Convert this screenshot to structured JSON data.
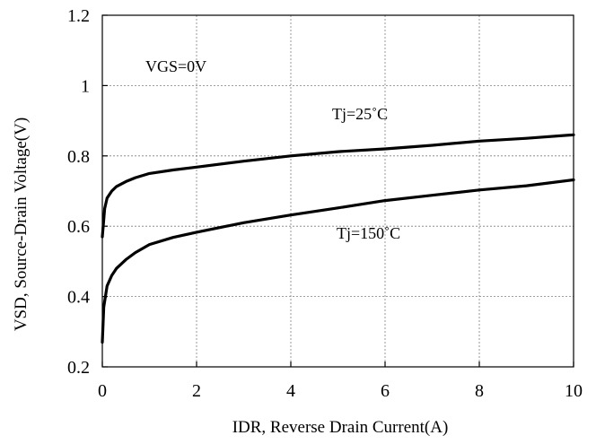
{
  "chart_data": {
    "type": "line",
    "xlabel": "IDR, Reverse Drain Current(A)",
    "ylabel": "VSD, Source-Drain Voltage(V)",
    "xlim": [
      0,
      10
    ],
    "ylim": [
      0.2,
      1.2
    ],
    "x_ticks": [
      "0",
      "2",
      "4",
      "6",
      "8",
      "10"
    ],
    "y_ticks": [
      "0.2",
      "0.4",
      "0.6",
      "0.8",
      "1",
      "1.2"
    ],
    "grid": true,
    "annotations": {
      "condition": "VGS=0V",
      "series_25": "Tj=25˚C",
      "series_150": "Tj=150˚C"
    },
    "series": [
      {
        "name": "Tj=25˚C",
        "x": [
          0.0,
          0.05,
          0.1,
          0.2,
          0.3,
          0.5,
          0.7,
          1.0,
          1.5,
          2.0,
          3.0,
          4.0,
          5.0,
          6.0,
          7.0,
          8.0,
          9.0,
          10.0
        ],
        "y": [
          0.57,
          0.65,
          0.68,
          0.7,
          0.713,
          0.727,
          0.738,
          0.75,
          0.76,
          0.768,
          0.785,
          0.8,
          0.812,
          0.82,
          0.83,
          0.842,
          0.85,
          0.86
        ]
      },
      {
        "name": "Tj=150˚C",
        "x": [
          0.0,
          0.03,
          0.1,
          0.2,
          0.3,
          0.5,
          0.7,
          1.0,
          1.5,
          2.0,
          3.0,
          4.0,
          5.0,
          6.0,
          7.0,
          8.0,
          9.0,
          10.0
        ],
        "y": [
          0.27,
          0.37,
          0.43,
          0.46,
          0.48,
          0.505,
          0.525,
          0.548,
          0.568,
          0.583,
          0.61,
          0.632,
          0.652,
          0.673,
          0.688,
          0.703,
          0.715,
          0.732
        ]
      }
    ]
  }
}
